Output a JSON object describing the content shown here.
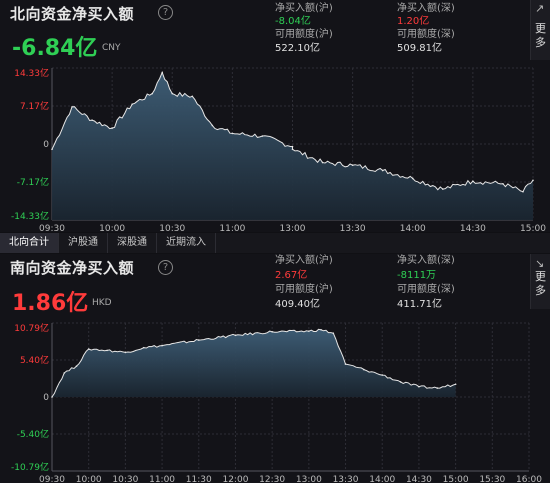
{
  "north": {
    "title": "北向资金净买入额",
    "value": "-6.84亿",
    "unit": "CNY",
    "net_buy_hu_label": "净买入额(沪)",
    "net_buy_hu_value": "-8.04亿",
    "net_buy_shen_label": "净买入额(深)",
    "net_buy_shen_value": "1.20亿",
    "quota_hu_label": "可用额度(沪)",
    "quota_hu_value": "522.10亿",
    "quota_shen_label": "可用额度(深)",
    "quota_shen_value": "509.81亿"
  },
  "south": {
    "title": "南向资金净买入额",
    "value": "1.86亿",
    "unit": "HKD",
    "net_buy_hu_label": "净买入额(沪)",
    "net_buy_hu_value": "2.67亿",
    "net_buy_shen_label": "净买入额(深)",
    "net_buy_shen_value": "-8111万",
    "quota_hu_label": "可用额度(沪)",
    "quota_hu_value": "409.40亿",
    "quota_shen_label": "可用额度(深)",
    "quota_shen_value": "411.71亿"
  },
  "sidebar": {
    "more_label": "更多"
  },
  "tabs": [
    "北向合计",
    "沪股通",
    "深股通",
    "近期流入"
  ],
  "colors": {
    "up": "#ff3b3b",
    "down": "#2fcf55",
    "line": "#e6e6e6",
    "fill_top": "#3f5f78",
    "fill_bottom": "#1a2530"
  },
  "chart_data": [
    {
      "type": "area",
      "title": "北向资金净买入额",
      "y_tick_labels": [
        "14.33亿",
        "7.17亿",
        "0",
        "-7.17亿",
        "-14.33亿"
      ],
      "ylim": [
        -14.33,
        14.33
      ],
      "x_tick_labels": [
        "09:30",
        "10:00",
        "10:30",
        "11:00",
        "13:00",
        "13:30",
        "14:00",
        "14:30",
        "15:00"
      ],
      "x": [
        "09:30",
        "09:40",
        "09:50",
        "10:00",
        "10:10",
        "10:20",
        "10:25",
        "10:30",
        "10:40",
        "10:50",
        "11:00",
        "11:15",
        "11:30",
        "13:00",
        "13:15",
        "13:30",
        "13:45",
        "14:00",
        "14:15",
        "14:30",
        "14:45",
        "14:55",
        "15:00"
      ],
      "values": [
        -1.0,
        7.0,
        4.5,
        3.0,
        7.5,
        9.5,
        13.5,
        9.5,
        9.0,
        3.5,
        2.0,
        1.5,
        -0.5,
        -1.0,
        -3.5,
        -4.0,
        -5.0,
        -6.5,
        -8.5,
        -7.0,
        -7.5,
        -9.0,
        -6.84
      ]
    },
    {
      "type": "area",
      "title": "南向资金净买入额",
      "y_tick_labels": [
        "10.79亿",
        "5.40亿",
        "0",
        "-5.40亿",
        "-10.79亿"
      ],
      "ylim": [
        -10.79,
        10.79
      ],
      "x_tick_labels": [
        "09:30",
        "10:00",
        "10:30",
        "11:00",
        "11:30",
        "12:00",
        "12:30",
        "13:00",
        "13:30",
        "14:00",
        "14:30",
        "15:00",
        "15:30",
        "16:00"
      ],
      "x": [
        "09:30",
        "09:40",
        "09:50",
        "10:00",
        "10:15",
        "10:30",
        "10:45",
        "11:00",
        "11:30",
        "12:00",
        "12:30",
        "13:00",
        "13:10",
        "13:20",
        "13:30",
        "13:45",
        "14:00",
        "14:15",
        "14:30",
        "14:45",
        "15:00"
      ],
      "values": [
        0.0,
        3.5,
        4.5,
        7.0,
        6.8,
        6.5,
        7.2,
        7.5,
        8.3,
        9.0,
        9.5,
        9.6,
        9.8,
        9.3,
        4.8,
        4.0,
        3.2,
        2.2,
        1.5,
        1.3,
        1.86
      ]
    }
  ]
}
